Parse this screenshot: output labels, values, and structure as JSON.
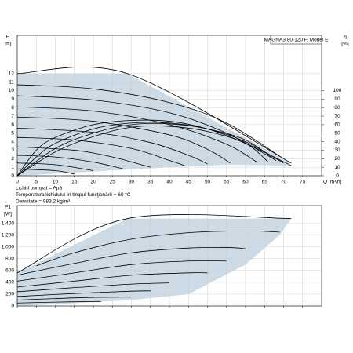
{
  "chart_data": [
    {
      "type": "line",
      "title": "MAGNA3 80-120 F, Model E",
      "ylabel": "H",
      "yunit": "[m]",
      "y2label": "η",
      "y2unit": "[%]",
      "xlabel": "Q [m³/h]",
      "notes": [
        "Lichid pompat = Apă",
        "Temperatura lichidului în timpul funcţionării = 60 °C",
        "Densitate = 983.2 kg/m³"
      ],
      "xlim": [
        0,
        80
      ],
      "ylim": [
        0,
        16.5
      ],
      "y2lim": [
        0,
        165
      ],
      "xticks": [
        0,
        5,
        10,
        15,
        20,
        25,
        30,
        35,
        40,
        45,
        50,
        55,
        60,
        65,
        70,
        75
      ],
      "yticks": [
        0,
        1,
        2,
        3,
        4,
        5,
        6,
        7,
        8,
        9,
        10,
        11,
        12
      ],
      "y2ticks": [
        0,
        10,
        20,
        30,
        40,
        50,
        60,
        70,
        80,
        90,
        100
      ],
      "grid": true,
      "envelope": {
        "color": "#cddbe6",
        "x": [
          0,
          0,
          29,
          72,
          71,
          55,
          40,
          20,
          5,
          0
        ],
        "values": [
          0,
          12,
          12,
          1.5,
          1.2,
          1.3,
          1.0,
          0.5,
          0.1,
          0
        ]
      },
      "series": [
        {
          "color": "#000000",
          "x": [
            0,
            29,
            72
          ],
          "values": [
            12,
            12,
            1.5
          ]
        },
        {
          "color": "#000000",
          "x": [
            0,
            20,
            40,
            55,
            70
          ],
          "values": [
            10.7,
            10.2,
            8.6,
            6.2,
            2.0
          ]
        },
        {
          "color": "#000000",
          "x": [
            0,
            20,
            40,
            55,
            68
          ],
          "values": [
            9.4,
            8.9,
            7.4,
            5.0,
            1.8
          ]
        },
        {
          "color": "#000000",
          "x": [
            0,
            20,
            40,
            55,
            63
          ],
          "values": [
            8.1,
            7.6,
            6.0,
            3.7,
            1.6
          ]
        },
        {
          "color": "#000000",
          "x": [
            0,
            20,
            40,
            50,
            56
          ],
          "values": [
            6.9,
            6.4,
            4.8,
            3.1,
            1.5
          ]
        },
        {
          "color": "#000000",
          "x": [
            0,
            20,
            35,
            45,
            50
          ],
          "values": [
            5.6,
            5.1,
            3.9,
            2.4,
            1.4
          ]
        },
        {
          "color": "#000000",
          "x": [
            0,
            15,
            30,
            40,
            44
          ],
          "values": [
            4.5,
            4.2,
            3.2,
            1.8,
            1.2
          ]
        },
        {
          "color": "#000000",
          "x": [
            0,
            15,
            25,
            35
          ],
          "values": [
            3.4,
            3.0,
            2.2,
            1.0
          ]
        },
        {
          "color": "#000000",
          "x": [
            0,
            10,
            20,
            28
          ],
          "values": [
            2.4,
            2.2,
            1.6,
            0.8
          ]
        },
        {
          "color": "#000000",
          "x": [
            0,
            10,
            20
          ],
          "values": [
            1.5,
            1.3,
            0.6
          ]
        },
        {
          "color": "#000000",
          "x": [
            0,
            10,
            15
          ],
          "values": [
            0.8,
            0.6,
            0.2
          ]
        },
        {
          "color": "#000000",
          "axis": "y2",
          "x": [
            0,
            5,
            10,
            20,
            30,
            40,
            50,
            60,
            72
          ],
          "values": [
            0,
            30,
            45,
            60,
            65,
            64,
            55,
            38,
            12
          ]
        },
        {
          "color": "#000000",
          "axis": "y2",
          "x": [
            0,
            5,
            10,
            20,
            30,
            40,
            50,
            60,
            70
          ],
          "values": [
            0,
            22,
            38,
            55,
            62,
            62,
            55,
            40,
            15
          ]
        },
        {
          "color": "#000000",
          "axis": "y2",
          "x": [
            0,
            10,
            20,
            30,
            40,
            50,
            60,
            68
          ],
          "values": [
            0,
            32,
            50,
            60,
            61,
            55,
            42,
            18
          ]
        },
        {
          "color": "#000000",
          "axis": "y2",
          "x": [
            0,
            10,
            20,
            30,
            40,
            50,
            60,
            66
          ],
          "values": [
            0,
            28,
            46,
            57,
            58,
            52,
            38,
            16
          ]
        }
      ]
    },
    {
      "type": "line",
      "ylabel": "P1",
      "yunit": "[W]",
      "xlim": [
        0,
        80
      ],
      "ylim": [
        0,
        1700
      ],
      "xticks": [
        0,
        5,
        10,
        15,
        20,
        25,
        30,
        35,
        40,
        45,
        50,
        55,
        60,
        65,
        70,
        75
      ],
      "yticks": [
        0,
        200,
        400,
        600,
        800,
        {
          "value": 1000,
          "label": "1.000"
        },
        {
          "value": 1200,
          "label": "1.200"
        },
        {
          "value": 1400,
          "label": "1.400"
        }
      ],
      "grid": true,
      "envelope": {
        "color": "#cddbe6",
        "x": [
          0,
          0,
          29,
          72,
          69,
          60,
          45,
          30,
          10,
          0
        ],
        "values": [
          0,
          560,
          1480,
          1480,
          1200,
          700,
          200,
          100,
          30,
          0
        ]
      },
      "series": [
        {
          "color": "#000000",
          "x": [
            0,
            29,
            72
          ],
          "values": [
            560,
            1480,
            1480
          ]
        },
        {
          "color": "#000000",
          "x": [
            5,
            15,
            30,
            45,
            60,
            69
          ],
          "values": [
            680,
            900,
            1130,
            1240,
            1270,
            1250
          ]
        },
        {
          "color": "#000000",
          "x": [
            0,
            15,
            30,
            45,
            55,
            60
          ],
          "values": [
            520,
            720,
            900,
            980,
            990,
            970
          ]
        },
        {
          "color": "#000000",
          "x": [
            0,
            15,
            30,
            45,
            55
          ],
          "values": [
            420,
            560,
            700,
            760,
            760
          ]
        },
        {
          "color": "#000000",
          "x": [
            0,
            15,
            30,
            45,
            50
          ],
          "values": [
            320,
            420,
            520,
            560,
            560
          ]
        },
        {
          "color": "#000000",
          "x": [
            0,
            15,
            30,
            40
          ],
          "values": [
            240,
            310,
            370,
            390
          ]
        },
        {
          "color": "#000000",
          "x": [
            0,
            15,
            30,
            35
          ],
          "values": [
            160,
            210,
            250,
            255
          ]
        },
        {
          "color": "#000000",
          "x": [
            0,
            10,
            20,
            30
          ],
          "values": [
            100,
            125,
            145,
            150
          ]
        },
        {
          "color": "#000000",
          "x": [
            0,
            10,
            20,
            22
          ],
          "values": [
            50,
            65,
            75,
            75
          ]
        }
      ]
    }
  ]
}
